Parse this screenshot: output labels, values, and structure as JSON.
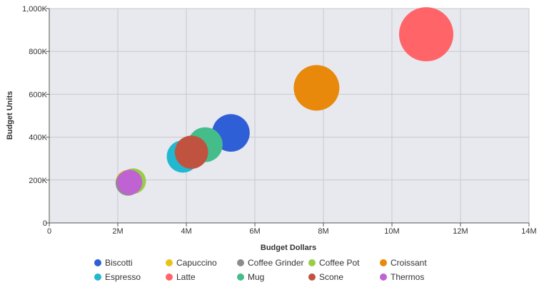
{
  "chart_data": {
    "type": "scatter",
    "subtype": "bubble",
    "title": "",
    "xlabel": "Budget Dollars",
    "ylabel": "Budget Units",
    "xlim": [
      0,
      14000000
    ],
    "ylim": [
      0,
      1000000
    ],
    "x_ticks": [
      0,
      2000000,
      4000000,
      6000000,
      8000000,
      10000000,
      12000000,
      14000000
    ],
    "x_tick_labels": [
      "0",
      "2M",
      "4M",
      "6M",
      "8M",
      "10M",
      "12M",
      "14M"
    ],
    "y_ticks": [
      0,
      200000,
      400000,
      600000,
      800000,
      1000000
    ],
    "y_tick_labels": [
      "0",
      "200K",
      "400K",
      "600K",
      "800K",
      "1,000K"
    ],
    "grid": true,
    "legend_position": "bottom",
    "series": [
      {
        "name": "Biscotti",
        "color": "#2f5fd6",
        "x": 5300000,
        "y": 420000,
        "size": 5300000
      },
      {
        "name": "Capuccino",
        "color": "#e8c21b",
        "x": 2300000,
        "y": 190000,
        "size": 2300000
      },
      {
        "name": "Coffee Grinder",
        "color": "#8c8c8c",
        "x": 2300000,
        "y": 185000,
        "size": 2300000
      },
      {
        "name": "Coffee Pot",
        "color": "#9acd46",
        "x": 2450000,
        "y": 195000,
        "size": 2450000
      },
      {
        "name": "Croissant",
        "color": "#e8890b",
        "x": 7800000,
        "y": 630000,
        "size": 7800000
      },
      {
        "name": "Espresso",
        "color": "#22b8cf",
        "x": 3900000,
        "y": 310000,
        "size": 3900000
      },
      {
        "name": "Latte",
        "color": "#ff6469",
        "x": 11000000,
        "y": 880000,
        "size": 11000000
      },
      {
        "name": "Mug",
        "color": "#45bd8a",
        "x": 4550000,
        "y": 365000,
        "size": 4550000
      },
      {
        "name": "Scone",
        "color": "#c0533f",
        "x": 4150000,
        "y": 330000,
        "size": 4150000
      },
      {
        "name": "Thermos",
        "color": "#bf63d2",
        "x": 2350000,
        "y": 190000,
        "size": 2350000
      }
    ],
    "draw_order": [
      "Latte",
      "Croissant",
      "Biscotti",
      "Mug",
      "Espresso",
      "Scone",
      "Coffee Pot",
      "Capuccino",
      "Coffee Grinder",
      "Thermos"
    ],
    "plot_background": "#e8e8ef",
    "grid_color": "#c8c8cf"
  }
}
